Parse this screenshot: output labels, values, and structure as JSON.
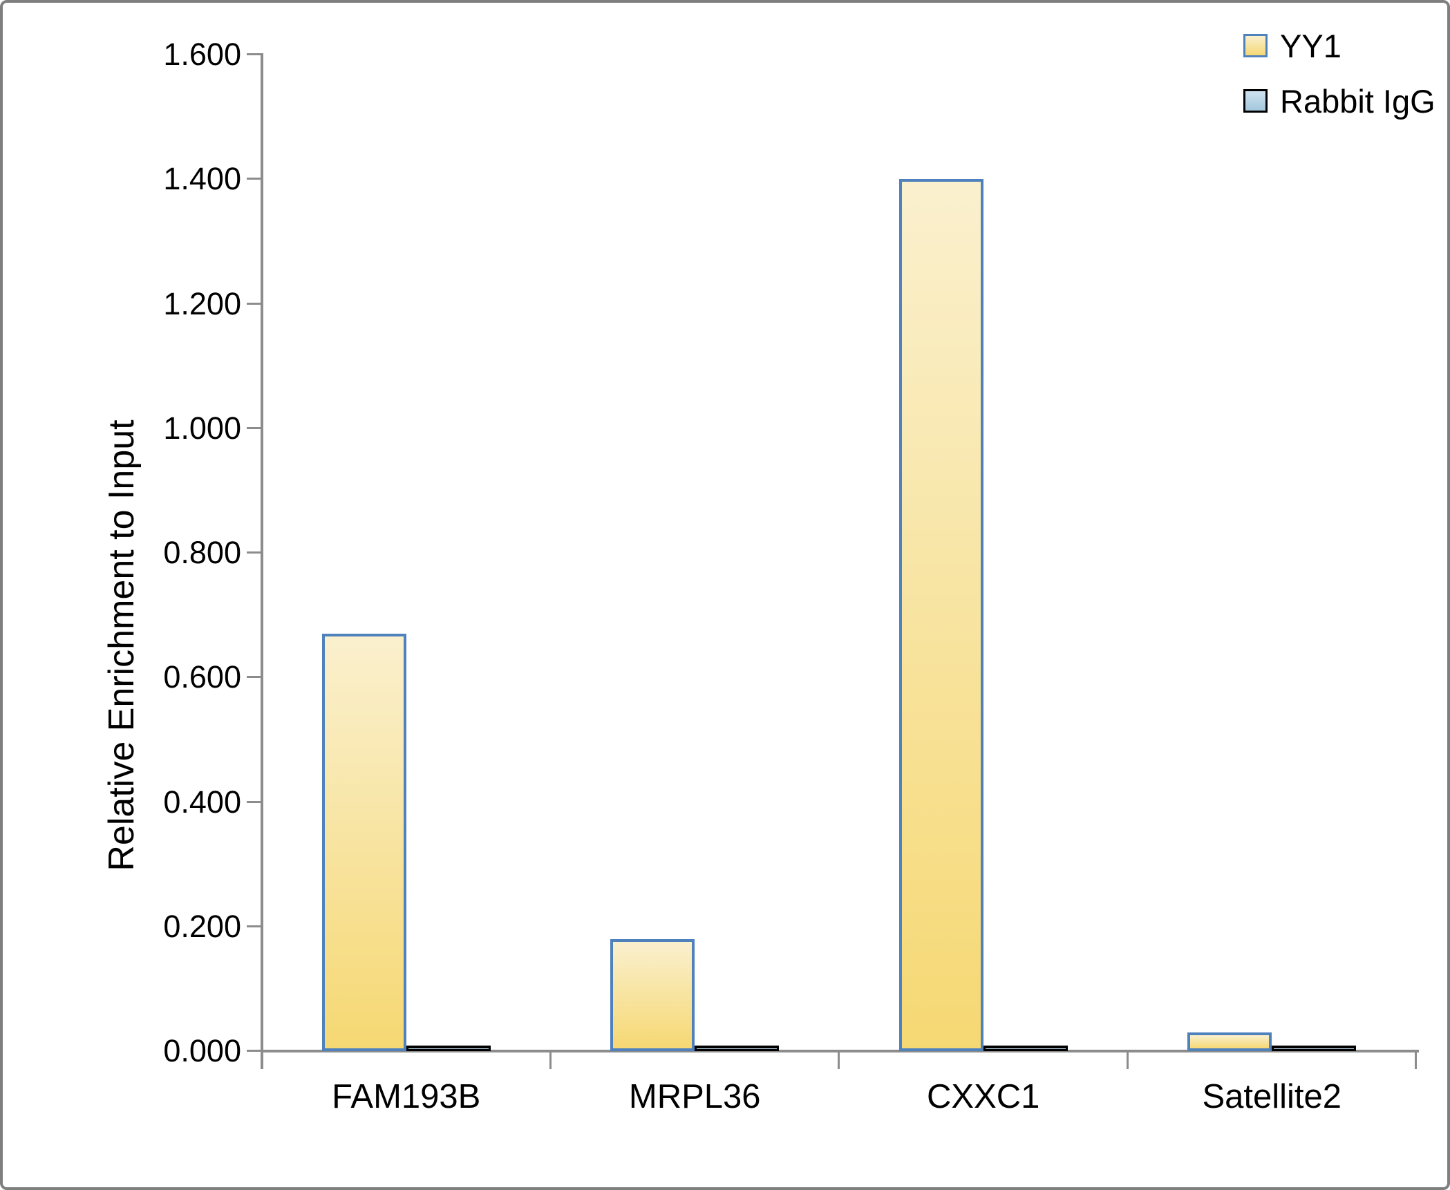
{
  "chart_data": {
    "type": "bar",
    "categories": [
      "FAM193B",
      "MRPL36",
      "CXXC1",
      "Satellite2"
    ],
    "series": [
      {
        "name": "YY1",
        "values": [
          0.67,
          0.18,
          1.4,
          0.03
        ],
        "fill_top": "#FAF0CE",
        "fill_bottom": "#F6D873",
        "border_color": "#4F81BD"
      },
      {
        "name": "Rabbit IgG",
        "values": [
          0.005,
          0.005,
          0.005,
          0.005
        ],
        "fill_top": "#CEE2F0",
        "fill_bottom": "#A4C7DD",
        "border_color": "#000000"
      }
    ],
    "title": "",
    "xlabel": "",
    "ylabel": "Relative Enrichment to Input",
    "ylim": [
      0,
      1.6
    ],
    "ytick_step": 0.2,
    "ytick_labels": [
      "0.000",
      "0.200",
      "0.400",
      "0.600",
      "0.800",
      "1.000",
      "1.200",
      "1.400",
      "1.600"
    ],
    "grid": false,
    "legend_position": "top-right",
    "axis_color": "#8C8C8C",
    "text_color": "#000000"
  }
}
